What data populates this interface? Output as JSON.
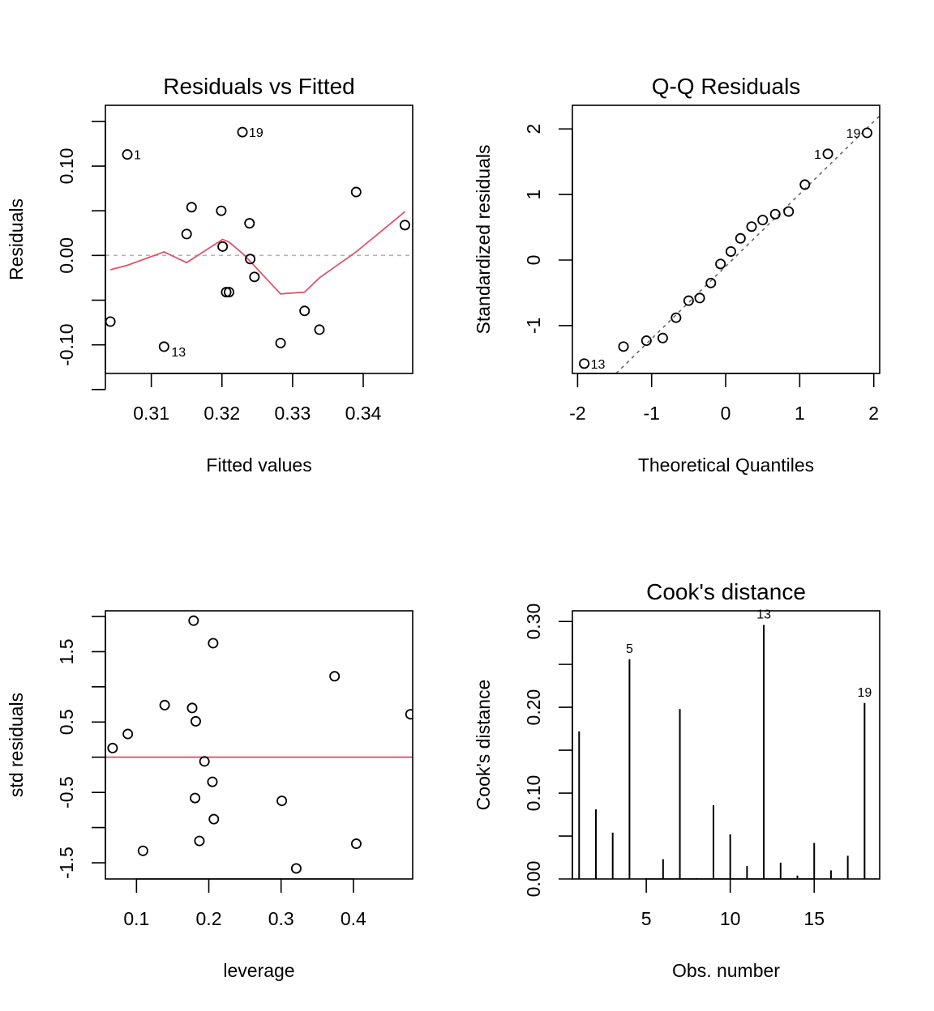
{
  "chart_data": [
    {
      "id": "resid_fitted",
      "type": "scatter",
      "title": "Residuals vs Fitted",
      "xlabel": "Fitted values",
      "ylabel": "Residuals",
      "xlim": [
        0.3035,
        0.347
      ],
      "ylim": [
        -0.132,
        0.168
      ],
      "xticks": [
        0.31,
        0.32,
        0.33,
        0.34
      ],
      "xtick_labels": [
        "0.31",
        "0.32",
        "0.33",
        "0.34"
      ],
      "yticks": [
        -0.15,
        -0.1,
        -0.05,
        0.0,
        0.05,
        0.1,
        0.15
      ],
      "ytick_labels": [
        "",
        "-0.10",
        "",
        "0.00",
        "",
        "0.10",
        ""
      ],
      "points": [
        {
          "x": 0.3042,
          "y": -0.074,
          "label": ""
        },
        {
          "x": 0.3066,
          "y": 0.113,
          "label": "1"
        },
        {
          "x": 0.3118,
          "y": -0.102,
          "label": "13"
        },
        {
          "x": 0.315,
          "y": 0.024,
          "label": ""
        },
        {
          "x": 0.3157,
          "y": 0.054,
          "label": ""
        },
        {
          "x": 0.3199,
          "y": 0.05,
          "label": ""
        },
        {
          "x": 0.3201,
          "y": 0.01,
          "label": ""
        },
        {
          "x": 0.3206,
          "y": -0.041,
          "label": ""
        },
        {
          "x": 0.321,
          "y": -0.041,
          "label": ""
        },
        {
          "x": 0.3229,
          "y": 0.138,
          "label": "19"
        },
        {
          "x": 0.3239,
          "y": 0.036,
          "label": ""
        },
        {
          "x": 0.324,
          "y": -0.004,
          "label": ""
        },
        {
          "x": 0.3246,
          "y": -0.024,
          "label": ""
        },
        {
          "x": 0.3283,
          "y": -0.098,
          "label": ""
        },
        {
          "x": 0.3317,
          "y": -0.062,
          "label": ""
        },
        {
          "x": 0.3338,
          "y": -0.083,
          "label": ""
        },
        {
          "x": 0.339,
          "y": 0.071,
          "label": ""
        },
        {
          "x": 0.3459,
          "y": 0.034,
          "label": ""
        }
      ],
      "smooth_line": {
        "color": "#df536b",
        "x": [
          0.3042,
          0.3066,
          0.3118,
          0.315,
          0.3201,
          0.321,
          0.3231,
          0.3283,
          0.3317,
          0.3338,
          0.339,
          0.3459
        ],
        "y": [
          -0.016,
          -0.011,
          0.004,
          -0.008,
          0.018,
          0.015,
          0.001,
          -0.043,
          -0.041,
          -0.025,
          0.004,
          0.049
        ]
      },
      "reference_line": {
        "y": 0,
        "style": "dashed",
        "color": "#b3b3b3"
      }
    },
    {
      "id": "qq",
      "type": "scatter",
      "title": "Q-Q Residuals",
      "xlabel": "Theoretical Quantiles",
      "ylabel": "Standardized residuals",
      "xlim": [
        -2.07,
        2.08
      ],
      "ylim": [
        -1.73,
        2.36
      ],
      "xticks": [
        -2,
        -1,
        0,
        1,
        2
      ],
      "xtick_labels": [
        "-2",
        "-1",
        "0",
        "1",
        "2"
      ],
      "yticks": [
        -1,
        0,
        1,
        2
      ],
      "ytick_labels": [
        "-1",
        "0",
        "1",
        "2"
      ],
      "points": [
        {
          "x": -1.91,
          "y": -1.58,
          "label": "13"
        },
        {
          "x": -1.38,
          "y": -1.32,
          "label": ""
        },
        {
          "x": -1.07,
          "y": -1.23,
          "label": ""
        },
        {
          "x": -0.85,
          "y": -1.19,
          "label": ""
        },
        {
          "x": -0.67,
          "y": -0.88,
          "label": ""
        },
        {
          "x": -0.5,
          "y": -0.62,
          "label": ""
        },
        {
          "x": -0.35,
          "y": -0.58,
          "label": ""
        },
        {
          "x": -0.2,
          "y": -0.35,
          "label": ""
        },
        {
          "x": -0.07,
          "y": -0.06,
          "label": ""
        },
        {
          "x": 0.07,
          "y": 0.13,
          "label": ""
        },
        {
          "x": 0.2,
          "y": 0.33,
          "label": ""
        },
        {
          "x": 0.35,
          "y": 0.51,
          "label": ""
        },
        {
          "x": 0.5,
          "y": 0.61,
          "label": ""
        },
        {
          "x": 0.67,
          "y": 0.7,
          "label": ""
        },
        {
          "x": 0.85,
          "y": 0.74,
          "label": ""
        },
        {
          "x": 1.07,
          "y": 1.15,
          "label": ""
        },
        {
          "x": 1.38,
          "y": 1.62,
          "label": "1"
        },
        {
          "x": 1.91,
          "y": 1.94,
          "label": "19"
        }
      ],
      "reference_line": {
        "x": [
          -1.48,
          2.08
        ],
        "y": [
          -1.73,
          2.2
        ],
        "style": "dashed",
        "color": "#666666"
      }
    },
    {
      "id": "std_resid_leverage",
      "type": "scatter",
      "title": "",
      "xlabel": "leverage",
      "ylabel": "std residuals",
      "xlim": [
        0.057,
        0.482
      ],
      "ylim": [
        -1.73,
        2.08
      ],
      "xticks": [
        0.1,
        0.2,
        0.3,
        0.4
      ],
      "xtick_labels": [
        "0.1",
        "0.2",
        "0.3",
        "0.4"
      ],
      "yticks": [
        -1.5,
        -1.0,
        -0.5,
        0.0,
        0.5,
        1.0,
        1.5,
        2.0
      ],
      "ytick_labels": [
        "-1.5",
        "",
        "-0.5",
        "",
        "0.5",
        "",
        "1.5",
        ""
      ],
      "points": [
        {
          "x": 0.067,
          "y": 0.13
        },
        {
          "x": 0.088,
          "y": 0.33
        },
        {
          "x": 0.109,
          "y": -1.33
        },
        {
          "x": 0.139,
          "y": 0.74
        },
        {
          "x": 0.177,
          "y": 0.7
        },
        {
          "x": 0.179,
          "y": 1.94
        },
        {
          "x": 0.181,
          "y": -0.58
        },
        {
          "x": 0.182,
          "y": 0.51
        },
        {
          "x": 0.187,
          "y": -1.19
        },
        {
          "x": 0.194,
          "y": -0.06
        },
        {
          "x": 0.205,
          "y": -0.35
        },
        {
          "x": 0.206,
          "y": 1.62
        },
        {
          "x": 0.207,
          "y": -0.88
        },
        {
          "x": 0.301,
          "y": -0.62
        },
        {
          "x": 0.321,
          "y": -1.58
        },
        {
          "x": 0.374,
          "y": 1.15
        },
        {
          "x": 0.404,
          "y": -1.23
        },
        {
          "x": 0.479,
          "y": 0.61
        }
      ],
      "reference_line": {
        "y": 0,
        "style": "solid",
        "color": "#df536b"
      }
    },
    {
      "id": "cooks",
      "type": "bar",
      "title": "Cook's distance",
      "xlabel": "Obs. number",
      "ylabel": "Cook's distance",
      "xlim": [
        0.6,
        18.9
      ],
      "ylim": [
        0,
        0.3124
      ],
      "xticks": [
        5,
        10,
        15
      ],
      "xtick_labels": [
        "5",
        "10",
        "15"
      ],
      "yticks": [
        0.0,
        0.05,
        0.1,
        0.15,
        0.2,
        0.25,
        0.3
      ],
      "ytick_labels": [
        "0.00",
        "",
        "0.10",
        "",
        "0.20",
        "",
        "0.30"
      ],
      "x": [
        1,
        2,
        3,
        4,
        5,
        6,
        7,
        8,
        9,
        10,
        11,
        12,
        13,
        14,
        15,
        16,
        17,
        18
      ],
      "values": [
        0.172,
        0.081,
        0.054,
        0.256,
        0.001,
        0.023,
        0.198,
        0.001,
        0.086,
        0.052,
        0.015,
        0.296,
        0.019,
        0.004,
        0.042,
        0.01,
        0.027,
        0.205
      ],
      "labels": {
        "4": "5",
        "12": "13",
        "18": "19"
      }
    }
  ]
}
